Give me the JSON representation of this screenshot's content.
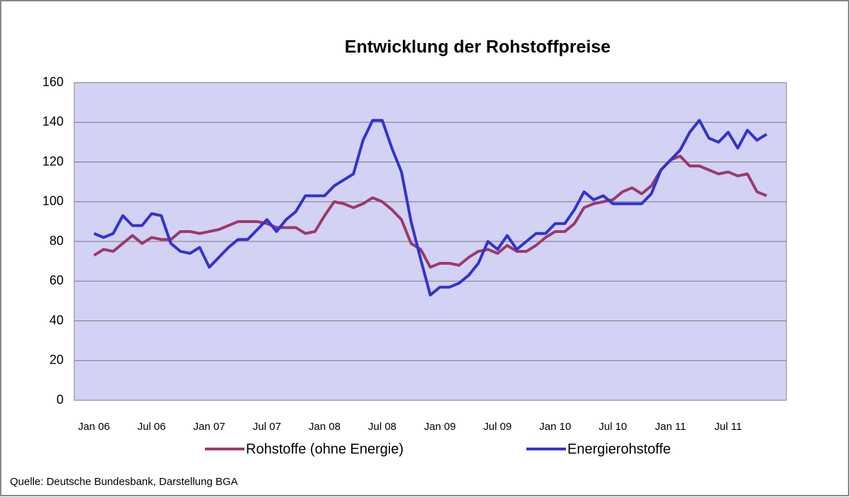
{
  "chart_data": {
    "type": "line",
    "title": "Entwicklung der Rohstoffpreise",
    "source": "Quelle: Deutsche Bundesbank, Darstellung BGA",
    "categories": [
      "Jan 06",
      null,
      null,
      null,
      null,
      null,
      "Jul 06",
      null,
      null,
      null,
      null,
      null,
      "Jan 07",
      null,
      null,
      null,
      null,
      null,
      "Jul 07",
      null,
      null,
      null,
      null,
      null,
      "Jan 08",
      null,
      null,
      null,
      null,
      null,
      "Jul 08",
      null,
      null,
      null,
      null,
      null,
      "Jan 09",
      null,
      null,
      null,
      null,
      null,
      "Jul 09",
      null,
      null,
      null,
      null,
      null,
      "Jan 10",
      null,
      null,
      null,
      null,
      null,
      "Jul 10",
      null,
      null,
      null,
      null,
      null,
      "Jan 11",
      null,
      null,
      null,
      null,
      null,
      "Jul 11",
      null,
      null,
      null,
      null
    ],
    "series": [
      {
        "name": "Rohstoffe (ohne Energie)",
        "color": "#9b3a6a",
        "values": [
          73,
          76,
          75,
          79,
          83,
          79,
          82,
          81,
          81,
          85,
          85,
          84,
          85,
          86,
          88,
          90,
          90,
          90,
          89,
          87,
          87,
          87,
          84,
          85,
          93,
          100,
          99,
          97,
          99,
          102,
          100,
          96,
          91,
          79,
          76,
          67,
          69,
          69,
          68,
          72,
          75,
          76,
          74,
          78,
          75,
          75,
          78,
          82,
          85,
          85,
          89,
          97,
          99,
          100,
          101,
          105,
          107,
          104,
          108,
          116,
          121,
          123,
          118,
          118,
          116,
          114,
          115,
          113,
          114,
          105,
          103
        ]
      },
      {
        "name": "Energierohstoffe",
        "color": "#3333cc",
        "values": [
          84,
          82,
          84,
          93,
          88,
          88,
          94,
          93,
          79,
          75,
          74,
          77,
          67,
          72,
          77,
          81,
          81,
          86,
          91,
          85,
          91,
          95,
          103,
          103,
          103,
          108,
          111,
          114,
          131,
          141,
          141,
          127,
          115,
          90,
          71,
          53,
          57,
          57,
          59,
          63,
          69,
          80,
          76,
          83,
          76,
          80,
          84,
          84,
          89,
          89,
          96,
          105,
          101,
          103,
          99,
          99,
          99,
          99,
          104,
          116,
          121,
          126,
          135,
          141,
          132,
          130,
          135,
          127,
          136,
          131,
          134
        ]
      }
    ],
    "ylim": [
      0,
      160
    ],
    "yticks": [
      0,
      20,
      40,
      60,
      80,
      100,
      120,
      140,
      160
    ],
    "grid": true,
    "plot_background": "#d2d2f5"
  }
}
